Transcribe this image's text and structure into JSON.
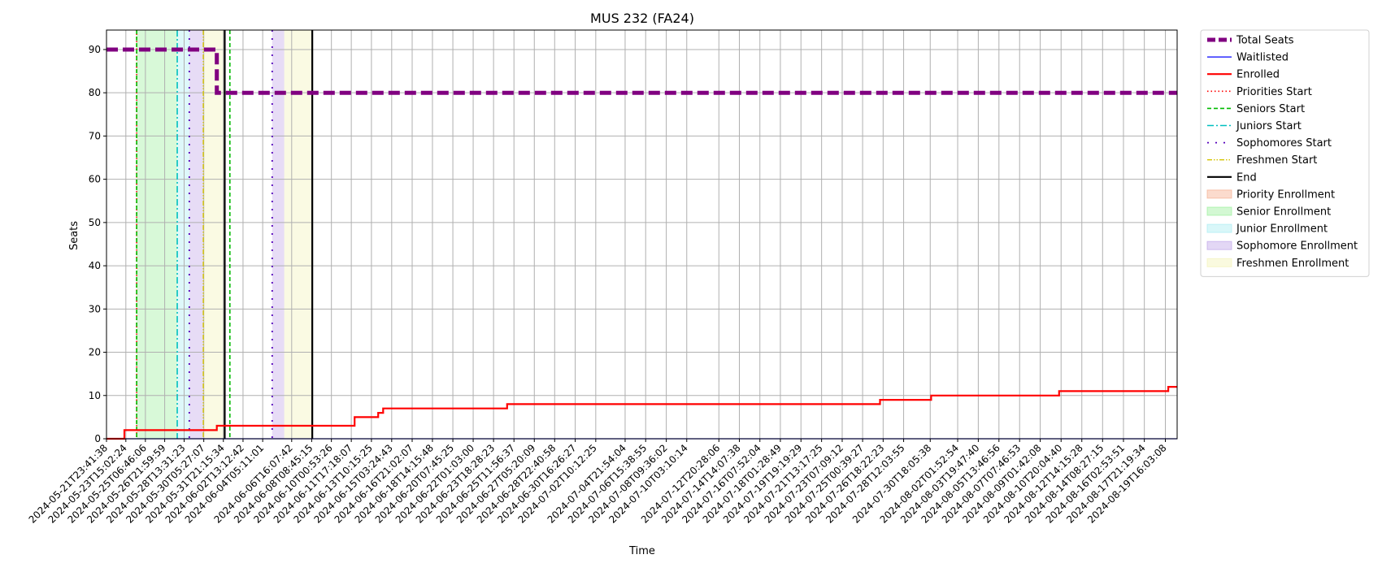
{
  "chart_data": {
    "type": "line",
    "title": "MUS 232 (FA24)",
    "xlabel": "Time",
    "ylabel": "Seats",
    "ylim": [
      0,
      94.5
    ],
    "yticks": [
      0,
      10,
      20,
      30,
      40,
      50,
      60,
      70,
      80,
      90
    ],
    "grid": true,
    "legend_position": "outside-right",
    "x_range": [
      "2024-05-21T23:41:38",
      "2024-08-20T16:00:00"
    ],
    "x_tick_labels": [
      "2024-05-21T23:41:38",
      "2024-05-23T15:02:24",
      "2024-05-25T06:46:06",
      "2024-05-26T21:59:59",
      "2024-05-28T13:31:23",
      "2024-05-30T05:27:07",
      "2024-05-31T21:15:34",
      "2024-06-02T13:12:42",
      "2024-06-04T05:11:01",
      "2024-06-06T16:07:42",
      "2024-06-08T08:45:15",
      "2024-06-10T00:53:26",
      "2024-06-11T17:18:07",
      "2024-06-13T10:15:25",
      "2024-06-15T03:24:43",
      "2024-06-16T21:02:07",
      "2024-06-18T14:15:48",
      "2024-06-20T07:45:25",
      "2024-06-22T01:03:00",
      "2024-06-23T18:28:23",
      "2024-06-25T11:56:37",
      "2024-06-27T05:20:09",
      "2024-06-28T22:40:58",
      "2024-06-30T16:26:27",
      "2024-07-02T10:12:25",
      "2024-07-04T21:54:04",
      "2024-07-06T15:38:55",
      "2024-07-08T09:36:02",
      "2024-07-10T03:10:14",
      "2024-07-12T20:28:06",
      "2024-07-14T14:07:38",
      "2024-07-16T07:52:04",
      "2024-07-18T01:28:49",
      "2024-07-19T19:19:29",
      "2024-07-21T13:17:25",
      "2024-07-23T07:09:12",
      "2024-07-25T00:39:27",
      "2024-07-26T18:22:23",
      "2024-07-28T12:03:55",
      "2024-07-30T18:05:38",
      "2024-08-02T01:52:54",
      "2024-08-03T19:47:40",
      "2024-08-05T13:46:56",
      "2024-08-07T07:46:53",
      "2024-08-09T01:42:08",
      "2024-08-10T20:04:40",
      "2024-08-12T14:15:28",
      "2024-08-14T08:27:15",
      "2024-08-16T02:53:51",
      "2024-08-17T21:19:34",
      "2024-08-19T16:03:08"
    ],
    "series": [
      {
        "name": "Total Seats",
        "color": "#800080",
        "style": "dashed-thick",
        "x": [
          "2024-05-21T23:41:38",
          "2024-05-31T08:00:00",
          "2024-05-31T08:00:00",
          "2024-08-20T16:00:00"
        ],
        "y": [
          90,
          90,
          80,
          80
        ]
      },
      {
        "name": "Waitlisted",
        "color": "#0000ff",
        "style": "solid-thin",
        "x": [
          "2024-05-21T23:41:38",
          "2024-08-20T16:00:00"
        ],
        "y": [
          0,
          0
        ]
      },
      {
        "name": "Enrolled",
        "color": "#ff0000",
        "style": "solid",
        "x": [
          "2024-05-21T23:41:38",
          "2024-05-23T12:00:00",
          "2024-05-23T12:00:00",
          "2024-05-31T08:00:00",
          "2024-05-31T08:00:00",
          "2024-06-12T00:00:00",
          "2024-06-12T00:00:00",
          "2024-06-14T00:00:00",
          "2024-06-14T00:00:00",
          "2024-06-14T10:00:00",
          "2024-06-14T10:00:00",
          "2024-06-24T22:00:00",
          "2024-06-24T22:00:00",
          "2024-07-26T12:00:00",
          "2024-07-26T12:00:00",
          "2024-07-30T20:00:00",
          "2024-07-30T20:00:00",
          "2024-08-10T16:00:00",
          "2024-08-10T16:00:00",
          "2024-08-19T22:00:00",
          "2024-08-19T22:00:00",
          "2024-08-20T16:00:00"
        ],
        "y": [
          0,
          0,
          2,
          2,
          3,
          3,
          5,
          5,
          6,
          6,
          7,
          7,
          8,
          8,
          9,
          9,
          10,
          10,
          11,
          11,
          12,
          12
        ]
      }
    ],
    "vertical_lines": [
      {
        "name": "Priorities Start",
        "color": "#ff0000",
        "style": "dotted",
        "x": [
          "2024-05-24T13:00:00"
        ]
      },
      {
        "name": "Seniors Start",
        "color": "#00bb00",
        "style": "dashed",
        "x": [
          "2024-05-24T13:00:00",
          "2024-06-01T10:30:00"
        ]
      },
      {
        "name": "Juniors Start",
        "color": "#00bfbf",
        "style": "dashdot",
        "x": [
          "2024-05-27T23:30:00"
        ]
      },
      {
        "name": "Sophomores Start",
        "color": "#5500bb",
        "style": "loosedot",
        "x": [
          "2024-05-29T00:00:00",
          "2024-06-05T00:30:00"
        ]
      },
      {
        "name": "Freshmen Start",
        "color": "#d4c400",
        "style": "dashdotdot",
        "x": [
          "2024-05-30T04:30:00"
        ]
      },
      {
        "name": "End",
        "color": "#000000",
        "style": "solid",
        "x": [
          "2024-06-01T00:00:00",
          "2024-06-08T10:00:00"
        ]
      }
    ],
    "shaded_regions": [
      {
        "name": "Priority Enrollment",
        "color": "#f4a582",
        "ranges": []
      },
      {
        "name": "Senior Enrollment",
        "color": "#90ee90",
        "ranges": [
          [
            "2024-05-24T13:00:00",
            "2024-05-27T23:30:00"
          ]
        ]
      },
      {
        "name": "Junior Enrollment",
        "color": "#a0eaf0",
        "ranges": [
          [
            "2024-05-27T23:30:00",
            "2024-05-29T00:00:00"
          ]
        ]
      },
      {
        "name": "Sophomore Enrollment",
        "color": "#b99be6",
        "ranges": [
          [
            "2024-05-29T00:00:00",
            "2024-05-30T04:30:00"
          ],
          [
            "2024-06-05T00:30:00",
            "2024-06-06T01:00:00"
          ]
        ]
      },
      {
        "name": "Freshmen Enrollment",
        "color": "#f2f2b0",
        "ranges": [
          [
            "2024-05-30T04:30:00",
            "2024-06-01T00:00:00"
          ],
          [
            "2024-06-06T01:00:00",
            "2024-06-08T10:00:00"
          ]
        ]
      }
    ]
  },
  "legend": {
    "items": [
      {
        "label": "Total Seats",
        "kind": "line",
        "color": "#800080",
        "style": "dashed-thick"
      },
      {
        "label": "Waitlisted",
        "kind": "line",
        "color": "#0000ff",
        "style": "solid-thin"
      },
      {
        "label": "Enrolled",
        "kind": "line",
        "color": "#ff0000",
        "style": "solid"
      },
      {
        "label": "Priorities Start",
        "kind": "line",
        "color": "#ff0000",
        "style": "dotted"
      },
      {
        "label": "Seniors Start",
        "kind": "line",
        "color": "#00bb00",
        "style": "dashed"
      },
      {
        "label": "Juniors Start",
        "kind": "line",
        "color": "#00bfbf",
        "style": "dashdot"
      },
      {
        "label": "Sophomores Start",
        "kind": "line",
        "color": "#5500bb",
        "style": "loosedot"
      },
      {
        "label": "Freshmen Start",
        "kind": "line",
        "color": "#d4c400",
        "style": "dashdotdot"
      },
      {
        "label": "End",
        "kind": "line",
        "color": "#000000",
        "style": "solid"
      },
      {
        "label": "Priority Enrollment",
        "kind": "patch",
        "color": "#f4a582"
      },
      {
        "label": "Senior Enrollment",
        "kind": "patch",
        "color": "#90ee90"
      },
      {
        "label": "Junior Enrollment",
        "kind": "patch",
        "color": "#a0eaf0"
      },
      {
        "label": "Sophomore Enrollment",
        "kind": "patch",
        "color": "#b99be6"
      },
      {
        "label": "Freshmen Enrollment",
        "kind": "patch",
        "color": "#f2f2b0"
      }
    ]
  }
}
